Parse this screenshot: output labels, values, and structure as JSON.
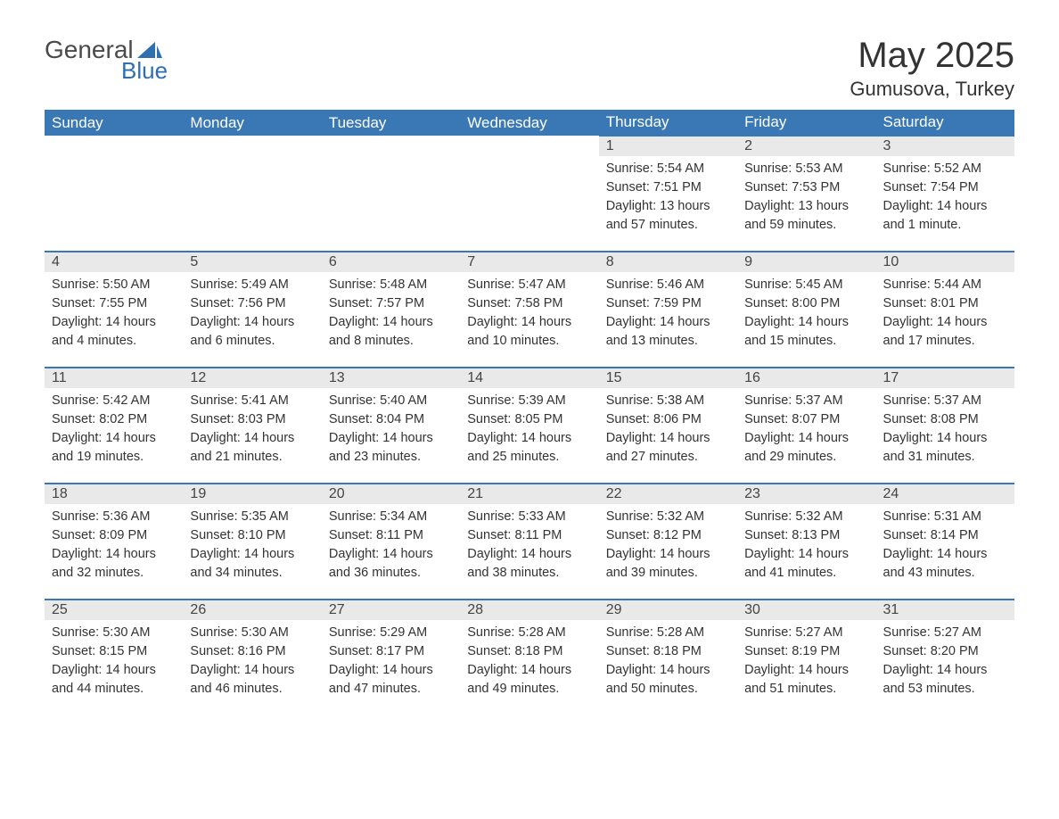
{
  "brand": {
    "general": "General",
    "blue": "Blue"
  },
  "title": {
    "month": "May 2025",
    "location": "Gumusova, Turkey"
  },
  "theme": {
    "header_bg": "#3a78b5",
    "header_fg": "#ffffff",
    "daynum_bg": "#e9e9e9",
    "row_border": "#3a78b5",
    "text_color": "#333333",
    "logo_blue": "#2f6fb0",
    "logo_gray": "#4a4a4a",
    "background": "#ffffff",
    "font_family": "Segoe UI, Arial, sans-serif"
  },
  "calendar": {
    "type": "table",
    "headers": [
      "Sunday",
      "Monday",
      "Tuesday",
      "Wednesday",
      "Thursday",
      "Friday",
      "Saturday"
    ],
    "weeks": [
      [
        null,
        null,
        null,
        null,
        {
          "n": "1",
          "sr": "Sunrise: 5:54 AM",
          "ss": "Sunset: 7:51 PM",
          "d1": "Daylight: 13 hours",
          "d2": "and 57 minutes."
        },
        {
          "n": "2",
          "sr": "Sunrise: 5:53 AM",
          "ss": "Sunset: 7:53 PM",
          "d1": "Daylight: 13 hours",
          "d2": "and 59 minutes."
        },
        {
          "n": "3",
          "sr": "Sunrise: 5:52 AM",
          "ss": "Sunset: 7:54 PM",
          "d1": "Daylight: 14 hours",
          "d2": "and 1 minute."
        }
      ],
      [
        {
          "n": "4",
          "sr": "Sunrise: 5:50 AM",
          "ss": "Sunset: 7:55 PM",
          "d1": "Daylight: 14 hours",
          "d2": "and 4 minutes."
        },
        {
          "n": "5",
          "sr": "Sunrise: 5:49 AM",
          "ss": "Sunset: 7:56 PM",
          "d1": "Daylight: 14 hours",
          "d2": "and 6 minutes."
        },
        {
          "n": "6",
          "sr": "Sunrise: 5:48 AM",
          "ss": "Sunset: 7:57 PM",
          "d1": "Daylight: 14 hours",
          "d2": "and 8 minutes."
        },
        {
          "n": "7",
          "sr": "Sunrise: 5:47 AM",
          "ss": "Sunset: 7:58 PM",
          "d1": "Daylight: 14 hours",
          "d2": "and 10 minutes."
        },
        {
          "n": "8",
          "sr": "Sunrise: 5:46 AM",
          "ss": "Sunset: 7:59 PM",
          "d1": "Daylight: 14 hours",
          "d2": "and 13 minutes."
        },
        {
          "n": "9",
          "sr": "Sunrise: 5:45 AM",
          "ss": "Sunset: 8:00 PM",
          "d1": "Daylight: 14 hours",
          "d2": "and 15 minutes."
        },
        {
          "n": "10",
          "sr": "Sunrise: 5:44 AM",
          "ss": "Sunset: 8:01 PM",
          "d1": "Daylight: 14 hours",
          "d2": "and 17 minutes."
        }
      ],
      [
        {
          "n": "11",
          "sr": "Sunrise: 5:42 AM",
          "ss": "Sunset: 8:02 PM",
          "d1": "Daylight: 14 hours",
          "d2": "and 19 minutes."
        },
        {
          "n": "12",
          "sr": "Sunrise: 5:41 AM",
          "ss": "Sunset: 8:03 PM",
          "d1": "Daylight: 14 hours",
          "d2": "and 21 minutes."
        },
        {
          "n": "13",
          "sr": "Sunrise: 5:40 AM",
          "ss": "Sunset: 8:04 PM",
          "d1": "Daylight: 14 hours",
          "d2": "and 23 minutes."
        },
        {
          "n": "14",
          "sr": "Sunrise: 5:39 AM",
          "ss": "Sunset: 8:05 PM",
          "d1": "Daylight: 14 hours",
          "d2": "and 25 minutes."
        },
        {
          "n": "15",
          "sr": "Sunrise: 5:38 AM",
          "ss": "Sunset: 8:06 PM",
          "d1": "Daylight: 14 hours",
          "d2": "and 27 minutes."
        },
        {
          "n": "16",
          "sr": "Sunrise: 5:37 AM",
          "ss": "Sunset: 8:07 PM",
          "d1": "Daylight: 14 hours",
          "d2": "and 29 minutes."
        },
        {
          "n": "17",
          "sr": "Sunrise: 5:37 AM",
          "ss": "Sunset: 8:08 PM",
          "d1": "Daylight: 14 hours",
          "d2": "and 31 minutes."
        }
      ],
      [
        {
          "n": "18",
          "sr": "Sunrise: 5:36 AM",
          "ss": "Sunset: 8:09 PM",
          "d1": "Daylight: 14 hours",
          "d2": "and 32 minutes."
        },
        {
          "n": "19",
          "sr": "Sunrise: 5:35 AM",
          "ss": "Sunset: 8:10 PM",
          "d1": "Daylight: 14 hours",
          "d2": "and 34 minutes."
        },
        {
          "n": "20",
          "sr": "Sunrise: 5:34 AM",
          "ss": "Sunset: 8:11 PM",
          "d1": "Daylight: 14 hours",
          "d2": "and 36 minutes."
        },
        {
          "n": "21",
          "sr": "Sunrise: 5:33 AM",
          "ss": "Sunset: 8:11 PM",
          "d1": "Daylight: 14 hours",
          "d2": "and 38 minutes."
        },
        {
          "n": "22",
          "sr": "Sunrise: 5:32 AM",
          "ss": "Sunset: 8:12 PM",
          "d1": "Daylight: 14 hours",
          "d2": "and 39 minutes."
        },
        {
          "n": "23",
          "sr": "Sunrise: 5:32 AM",
          "ss": "Sunset: 8:13 PM",
          "d1": "Daylight: 14 hours",
          "d2": "and 41 minutes."
        },
        {
          "n": "24",
          "sr": "Sunrise: 5:31 AM",
          "ss": "Sunset: 8:14 PM",
          "d1": "Daylight: 14 hours",
          "d2": "and 43 minutes."
        }
      ],
      [
        {
          "n": "25",
          "sr": "Sunrise: 5:30 AM",
          "ss": "Sunset: 8:15 PM",
          "d1": "Daylight: 14 hours",
          "d2": "and 44 minutes."
        },
        {
          "n": "26",
          "sr": "Sunrise: 5:30 AM",
          "ss": "Sunset: 8:16 PM",
          "d1": "Daylight: 14 hours",
          "d2": "and 46 minutes."
        },
        {
          "n": "27",
          "sr": "Sunrise: 5:29 AM",
          "ss": "Sunset: 8:17 PM",
          "d1": "Daylight: 14 hours",
          "d2": "and 47 minutes."
        },
        {
          "n": "28",
          "sr": "Sunrise: 5:28 AM",
          "ss": "Sunset: 8:18 PM",
          "d1": "Daylight: 14 hours",
          "d2": "and 49 minutes."
        },
        {
          "n": "29",
          "sr": "Sunrise: 5:28 AM",
          "ss": "Sunset: 8:18 PM",
          "d1": "Daylight: 14 hours",
          "d2": "and 50 minutes."
        },
        {
          "n": "30",
          "sr": "Sunrise: 5:27 AM",
          "ss": "Sunset: 8:19 PM",
          "d1": "Daylight: 14 hours",
          "d2": "and 51 minutes."
        },
        {
          "n": "31",
          "sr": "Sunrise: 5:27 AM",
          "ss": "Sunset: 8:20 PM",
          "d1": "Daylight: 14 hours",
          "d2": "and 53 minutes."
        }
      ]
    ]
  }
}
